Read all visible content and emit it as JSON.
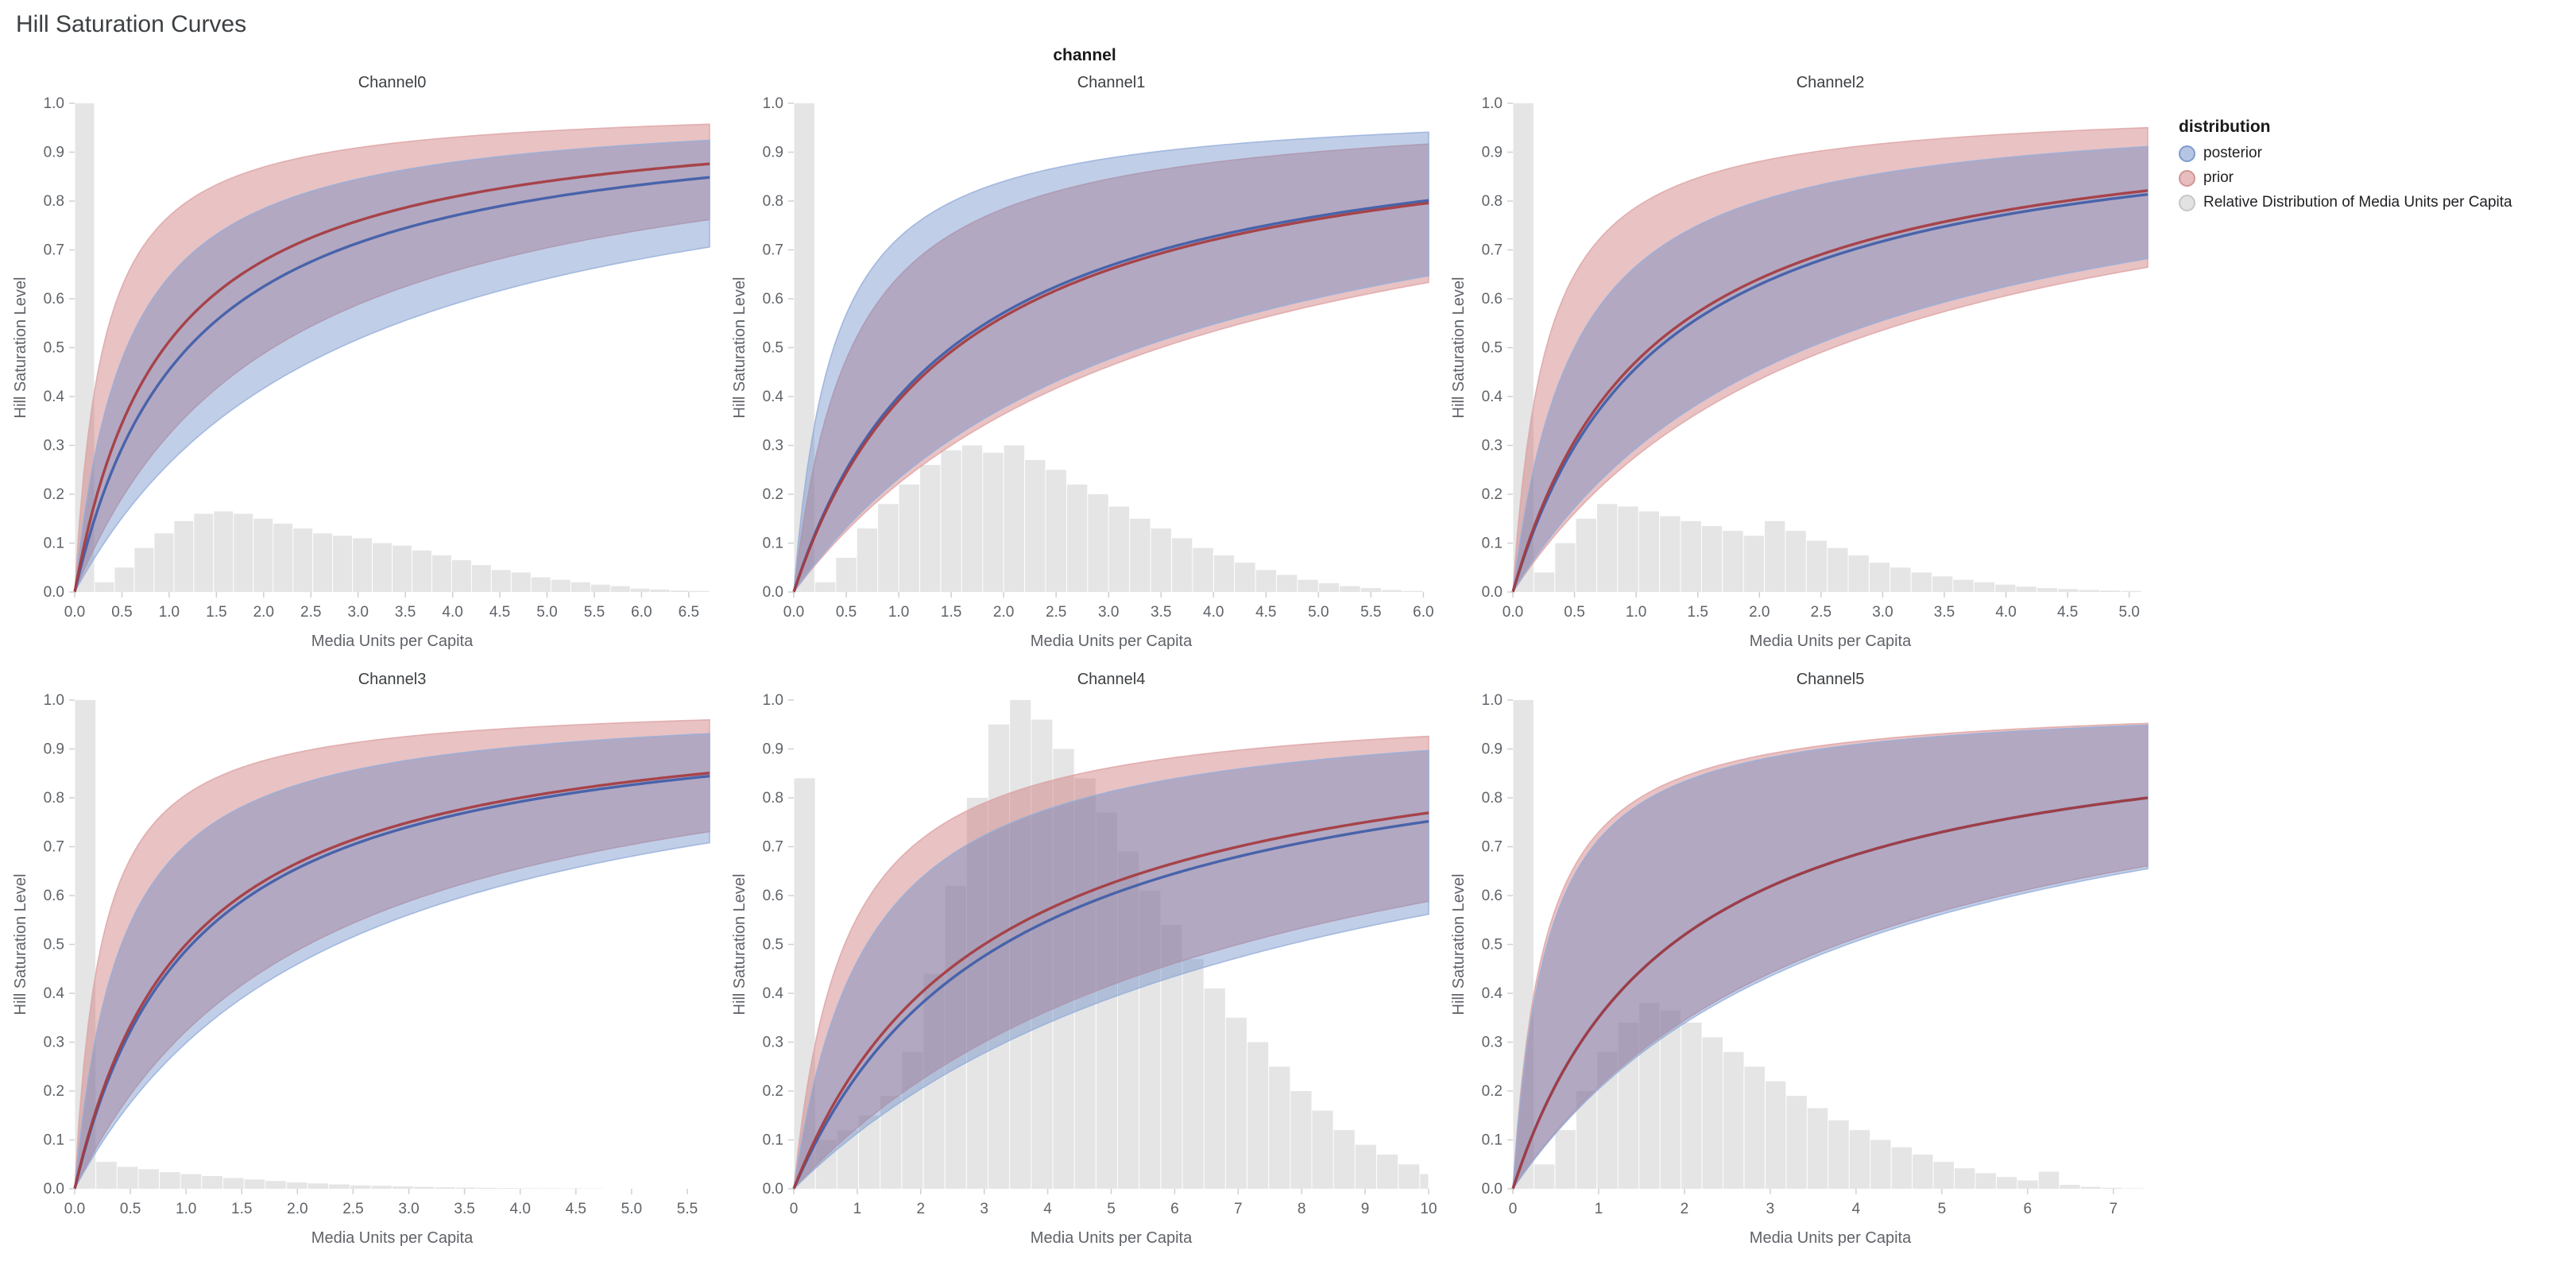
{
  "page": {
    "title": "Hill Saturation Curves",
    "facet_label": "channel"
  },
  "axes": {
    "x_title": "Media Units per Capita",
    "y_title": "Hill Saturation Level",
    "y_ticks": [
      "0.0",
      "0.1",
      "0.2",
      "0.3",
      "0.4",
      "0.5",
      "0.6",
      "0.7",
      "0.8",
      "0.9",
      "1.0"
    ]
  },
  "legend": {
    "title": "distribution",
    "items": [
      {
        "id": "posterior",
        "label": "posterior",
        "fill": "rgba(92,127,192,0.45)",
        "border": "#7d9ccb"
      },
      {
        "id": "prior",
        "label": "prior",
        "fill": "rgba(203,109,111,0.45)",
        "border": "#d29496"
      },
      {
        "id": "media-distribution",
        "label": "Relative Distribution of Media Units per Capita",
        "fill": "rgba(207,207,207,0.6)",
        "border": "#c6c6c6"
      }
    ]
  },
  "colors": {
    "posterior_line": "#3f5da8",
    "posterior_fill": "#5c7fc0",
    "posterior_fill_opacity": 0.38,
    "posterior_edge": "#93aedb",
    "prior_line": "#a53b3f",
    "prior_fill": "#cb6d6f",
    "prior_fill_opacity": 0.42,
    "prior_edge": "#dda2a4",
    "hist_fill": "#cfcfcf",
    "hist_opacity": 0.55,
    "tick_stroke": "#d0d0d0"
  },
  "chart_data": {
    "type": "line",
    "title": "Hill Saturation Curves",
    "xlabel": "Media Units per Capita",
    "ylabel": "Hill Saturation Level",
    "ylim": [
      0,
      1
    ],
    "grid": false,
    "legend_position": "right",
    "curve_model": "hill curve: y = x / (x + k); k values below give the mean line and the credible-band low/high edges for prior and posterior; histogram is the relative distribution of media units per capita (heights on the 0-1 y scale)",
    "channels": [
      {
        "name": "Channel0",
        "xmax": 6.72,
        "x_ticks": [
          "0.0",
          "0.5",
          "1.0",
          "1.5",
          "2.0",
          "2.5",
          "3.0",
          "3.5",
          "4.0",
          "4.5",
          "5.0",
          "5.5",
          "6.0",
          "6.5"
        ],
        "curves": {
          "posterior": {
            "mean_k": 1.2,
            "low_k": 2.8,
            "high_k": 0.55
          },
          "prior": {
            "mean_k": 0.95,
            "low_k": 2.1,
            "high_k": 0.3
          }
        },
        "histogram": {
          "bin_width": 0.21,
          "heights": [
            1.0,
            0.02,
            0.05,
            0.09,
            0.12,
            0.145,
            0.16,
            0.165,
            0.16,
            0.15,
            0.14,
            0.13,
            0.12,
            0.115,
            0.11,
            0.1,
            0.095,
            0.085,
            0.075,
            0.065,
            0.055,
            0.045,
            0.04,
            0.03,
            0.025,
            0.02,
            0.015,
            0.012,
            0.007,
            0.005,
            0.003,
            0.002
          ]
        }
      },
      {
        "name": "Channel1",
        "xmax": 6.05,
        "x_ticks": [
          "0.0",
          "0.5",
          "1.0",
          "1.5",
          "2.0",
          "2.5",
          "3.0",
          "3.5",
          "4.0",
          "4.5",
          "5.0",
          "5.5",
          "6.0"
        ],
        "curves": {
          "posterior": {
            "mean_k": 1.5,
            "low_k": 3.3,
            "high_k": 0.38
          },
          "prior": {
            "mean_k": 1.55,
            "low_k": 3.5,
            "high_k": 0.55
          }
        },
        "histogram": {
          "bin_width": 0.2,
          "heights": [
            1.0,
            0.02,
            0.07,
            0.13,
            0.18,
            0.22,
            0.26,
            0.29,
            0.3,
            0.285,
            0.3,
            0.27,
            0.25,
            0.22,
            0.2,
            0.175,
            0.15,
            0.13,
            0.11,
            0.09,
            0.075,
            0.06,
            0.045,
            0.035,
            0.025,
            0.018,
            0.012,
            0.008,
            0.004,
            0.002
          ]
        }
      },
      {
        "name": "Channel2",
        "xmax": 5.15,
        "x_ticks": [
          "0.0",
          "0.5",
          "1.0",
          "1.5",
          "2.0",
          "2.5",
          "3.0",
          "3.5",
          "4.0",
          "4.5",
          "5.0"
        ],
        "curves": {
          "posterior": {
            "mean_k": 1.18,
            "low_k": 2.4,
            "high_k": 0.5
          },
          "prior": {
            "mean_k": 1.12,
            "low_k": 2.6,
            "high_k": 0.27
          }
        },
        "histogram": {
          "bin_width": 0.17,
          "heights": [
            1.0,
            0.04,
            0.1,
            0.15,
            0.18,
            0.175,
            0.165,
            0.155,
            0.145,
            0.135,
            0.125,
            0.115,
            0.145,
            0.125,
            0.105,
            0.09,
            0.075,
            0.06,
            0.05,
            0.04,
            0.032,
            0.025,
            0.02,
            0.015,
            0.011,
            0.008,
            0.006,
            0.004,
            0.003,
            0.002
          ]
        }
      },
      {
        "name": "Channel3",
        "xmax": 5.7,
        "x_ticks": [
          "0.0",
          "0.5",
          "1.0",
          "1.5",
          "2.0",
          "2.5",
          "3.0",
          "3.5",
          "4.0",
          "4.5",
          "5.0",
          "5.5"
        ],
        "curves": {
          "posterior": {
            "mean_k": 1.05,
            "low_k": 2.35,
            "high_k": 0.42
          },
          "prior": {
            "mean_k": 1.0,
            "low_k": 2.1,
            "high_k": 0.24
          }
        },
        "histogram": {
          "bin_width": 0.19,
          "heights": [
            1.0,
            0.055,
            0.045,
            0.04,
            0.034,
            0.03,
            0.026,
            0.022,
            0.019,
            0.016,
            0.013,
            0.011,
            0.009,
            0.007,
            0.006,
            0.005,
            0.004,
            0.003,
            0.0025,
            0.002,
            0.0015,
            0.001,
            0.001,
            0.0008,
            0.0006,
            0.0005,
            0.0004,
            0.0003,
            0.0002,
            0.0001
          ]
        }
      },
      {
        "name": "Channel4",
        "xmax": 10.0,
        "x_ticks": [
          "0",
          "1",
          "2",
          "3",
          "4",
          "5",
          "6",
          "7",
          "8",
          "9",
          "10"
        ],
        "curves": {
          "posterior": {
            "mean_k": 3.3,
            "low_k": 7.8,
            "high_k": 1.15
          },
          "prior": {
            "mean_k": 3.0,
            "low_k": 7.0,
            "high_k": 0.8
          }
        },
        "histogram": {
          "bin_width": 0.34,
          "heights": [
            0.84,
            0.1,
            0.12,
            0.15,
            0.19,
            0.28,
            0.44,
            0.62,
            0.8,
            0.95,
            1.0,
            0.96,
            0.9,
            0.84,
            0.77,
            0.69,
            0.61,
            0.54,
            0.47,
            0.41,
            0.35,
            0.3,
            0.25,
            0.2,
            0.16,
            0.12,
            0.09,
            0.07,
            0.05,
            0.03
          ]
        }
      },
      {
        "name": "Channel5",
        "xmax": 7.4,
        "x_ticks": [
          "0",
          "1",
          "2",
          "3",
          "4",
          "5",
          "6",
          "7"
        ],
        "curves": {
          "posterior": {
            "mean_k": 1.85,
            "low_k": 3.9,
            "high_k": 0.4
          },
          "prior": {
            "mean_k": 1.85,
            "low_k": 3.8,
            "high_k": 0.37
          }
        },
        "histogram": {
          "bin_width": 0.245,
          "heights": [
            1.0,
            0.05,
            0.12,
            0.2,
            0.28,
            0.34,
            0.38,
            0.365,
            0.34,
            0.31,
            0.28,
            0.25,
            0.22,
            0.19,
            0.165,
            0.14,
            0.12,
            0.1,
            0.085,
            0.07,
            0.055,
            0.042,
            0.032,
            0.024,
            0.017,
            0.035,
            0.008,
            0.004,
            0.002,
            0.001
          ]
        }
      }
    ]
  }
}
